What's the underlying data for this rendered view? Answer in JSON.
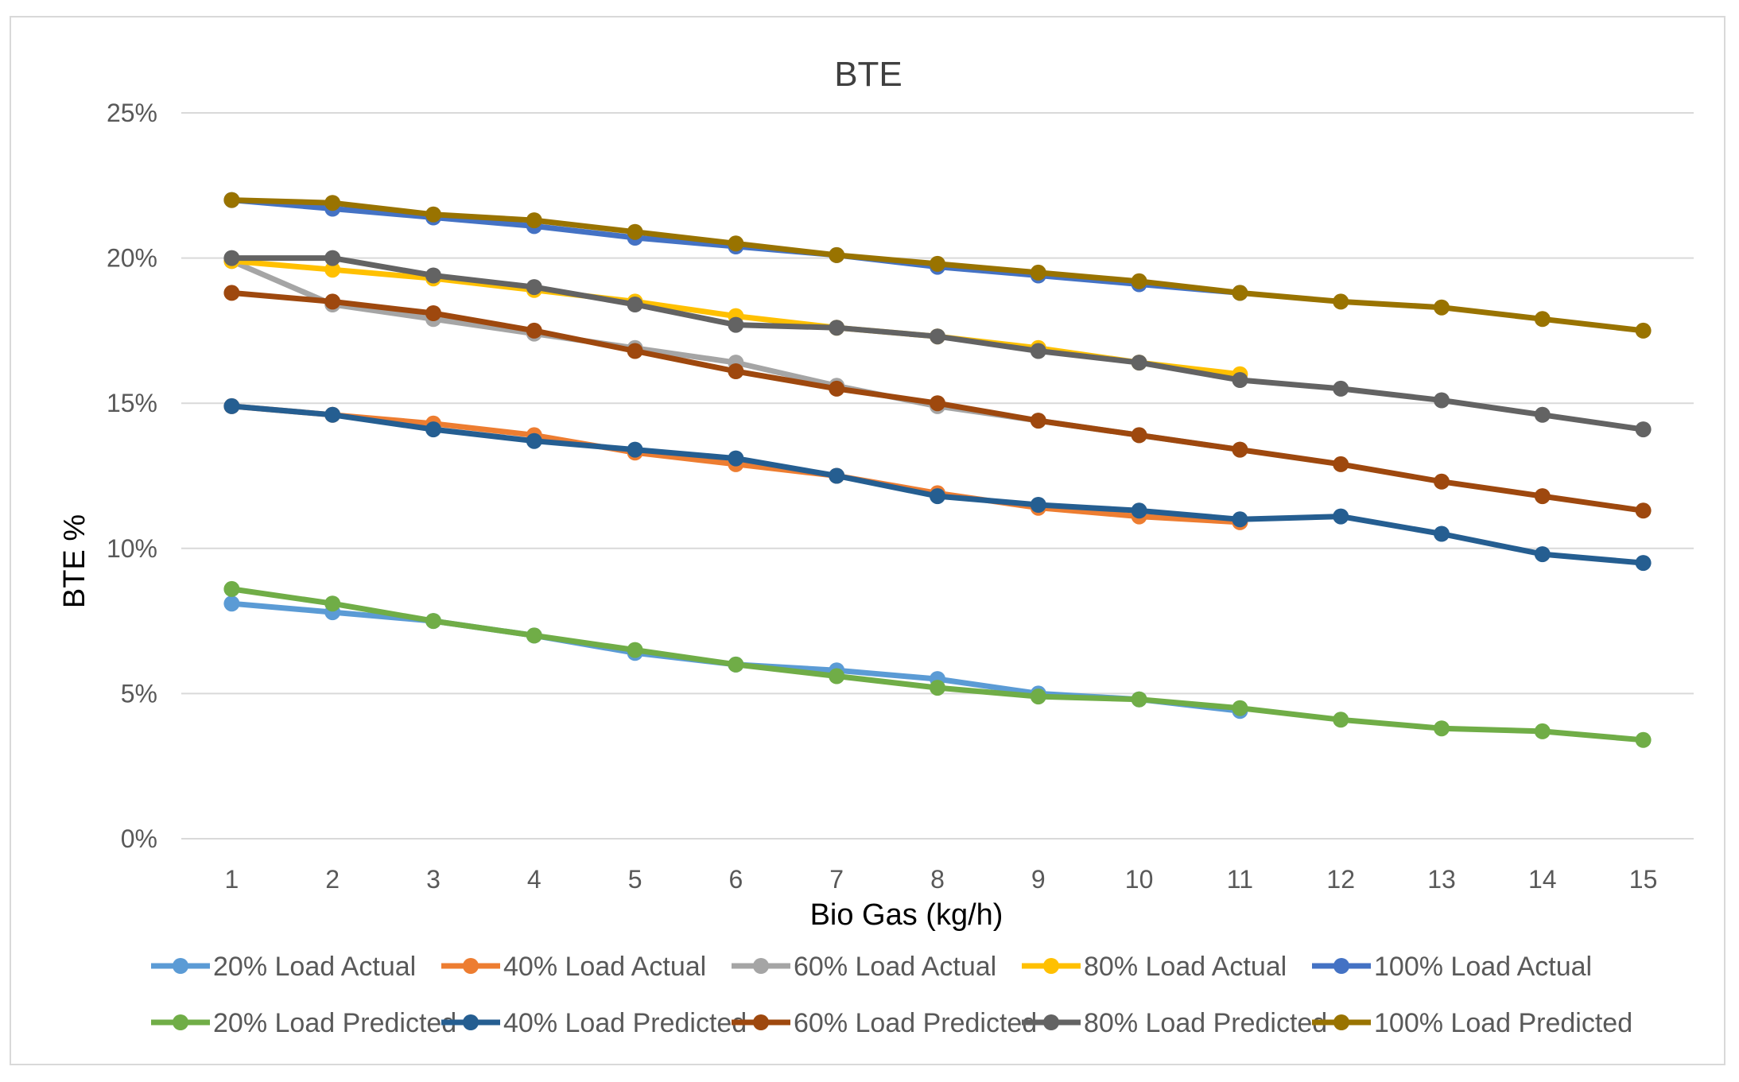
{
  "chart_data": {
    "type": "line",
    "title": "BTE",
    "xlabel": "Bio Gas (kg/h)",
    "ylabel": "BTE %",
    "categories": [
      "1",
      "2",
      "3",
      "4",
      "5",
      "6",
      "7",
      "8",
      "9",
      "10",
      "11",
      "12",
      "13",
      "14",
      "15"
    ],
    "ylim": [
      0,
      25
    ],
    "yticks": [
      0,
      5,
      10,
      15,
      20,
      25
    ],
    "ytick_labels": [
      "0%",
      "5%",
      "10%",
      "15%",
      "20%",
      "25%"
    ],
    "grid": true,
    "legend_position": "bottom",
    "series": [
      {
        "name": "20% Load Actual",
        "color": "#5b9bd5",
        "values": [
          8.1,
          7.8,
          7.5,
          7.0,
          6.4,
          6.0,
          5.8,
          5.5,
          5.0,
          4.8,
          4.4,
          null,
          null,
          null,
          null
        ]
      },
      {
        "name": "40% Load Actual",
        "color": "#ed7d31",
        "values": [
          14.9,
          14.6,
          14.3,
          13.9,
          13.3,
          12.9,
          12.5,
          11.9,
          11.4,
          11.1,
          10.9,
          null,
          null,
          null,
          null
        ]
      },
      {
        "name": "60% Load Actual",
        "color": "#a5a5a5",
        "values": [
          19.9,
          18.4,
          17.9,
          17.4,
          16.9,
          16.4,
          15.6,
          14.9,
          14.4,
          13.9,
          13.4,
          null,
          null,
          null,
          null
        ]
      },
      {
        "name": "80% Load Actual",
        "color": "#ffc000",
        "values": [
          19.9,
          19.6,
          19.3,
          18.9,
          18.5,
          18.0,
          17.6,
          17.3,
          16.9,
          16.4,
          16.0,
          null,
          null,
          null,
          null
        ]
      },
      {
        "name": "100% Load Actual",
        "color": "#4472c4",
        "values": [
          22.0,
          21.7,
          21.4,
          21.1,
          20.7,
          20.4,
          20.1,
          19.7,
          19.4,
          19.1,
          18.8,
          null,
          null,
          null,
          null
        ]
      },
      {
        "name": "20% Load Predicted",
        "color": "#70ad47",
        "values": [
          8.6,
          8.1,
          7.5,
          7.0,
          6.5,
          6.0,
          5.6,
          5.2,
          4.9,
          4.8,
          4.5,
          4.1,
          3.8,
          3.7,
          3.4
        ]
      },
      {
        "name": "40% Load Predicted",
        "color": "#255e91",
        "values": [
          14.9,
          14.6,
          14.1,
          13.7,
          13.4,
          13.1,
          12.5,
          11.8,
          11.5,
          11.3,
          11.0,
          11.1,
          10.5,
          9.8,
          9.5
        ]
      },
      {
        "name": "60% Load Predicted",
        "color": "#9e480e",
        "values": [
          18.8,
          18.5,
          18.1,
          17.5,
          16.8,
          16.1,
          15.5,
          15.0,
          14.4,
          13.9,
          13.4,
          12.9,
          12.3,
          11.8,
          11.3
        ]
      },
      {
        "name": "80% Load Predicted",
        "color": "#636363",
        "values": [
          20.0,
          20.0,
          19.4,
          19.0,
          18.4,
          17.7,
          17.6,
          17.3,
          16.8,
          16.4,
          15.8,
          15.5,
          15.1,
          14.6,
          14.1
        ]
      },
      {
        "name": "100% Load Predicted",
        "color": "#997300",
        "values": [
          22.0,
          21.9,
          21.5,
          21.3,
          20.9,
          20.5,
          20.1,
          19.8,
          19.5,
          19.2,
          18.8,
          18.5,
          18.3,
          17.9,
          17.5
        ]
      }
    ]
  }
}
